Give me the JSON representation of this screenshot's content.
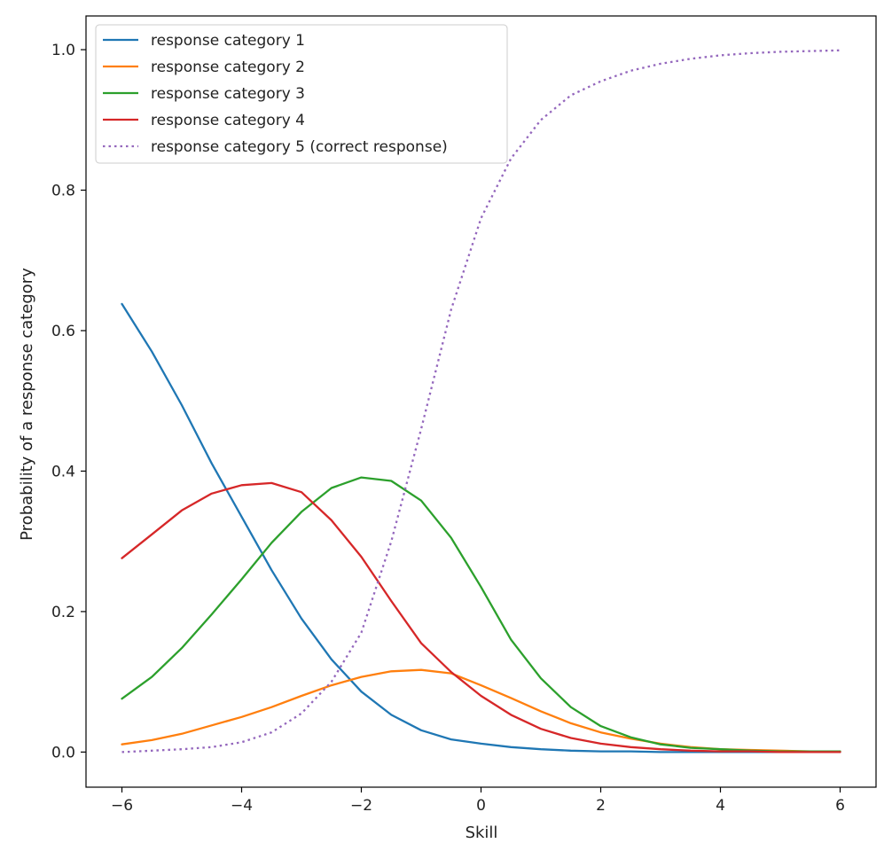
{
  "chart_data": {
    "type": "line",
    "title": "",
    "xlabel": "Skill",
    "ylabel": "Probability of a response category",
    "xlim": [
      -6.6,
      6.6
    ],
    "ylim": [
      -0.05,
      1.048
    ],
    "xticks": [
      -6,
      -4,
      -2,
      0,
      2,
      4,
      6
    ],
    "xtick_labels": [
      "−6",
      "−4",
      "−2",
      "0",
      "2",
      "4",
      "6"
    ],
    "yticks": [
      0.0,
      0.2,
      0.4,
      0.6,
      0.8,
      1.0
    ],
    "ytick_labels": [
      "0.0",
      "0.2",
      "0.4",
      "0.6",
      "0.8",
      "1.0"
    ],
    "grid": false,
    "legend_position": "upper-left",
    "x": [
      -6,
      -5.5,
      -5,
      -4.5,
      -4,
      -3.5,
      -3,
      -2.5,
      -2,
      -1.5,
      -1,
      -0.5,
      0,
      0.5,
      1,
      1.5,
      2,
      2.5,
      3,
      3.5,
      4,
      4.5,
      5,
      5.5,
      6
    ],
    "series": [
      {
        "name": "response category 1",
        "color": "#1f77b4",
        "style": "solid",
        "values": [
          0.638,
          0.57,
          0.494,
          0.411,
          0.335,
          0.259,
          0.19,
          0.132,
          0.086,
          0.053,
          0.031,
          0.018,
          0.012,
          0.007,
          0.004,
          0.002,
          0.001,
          0.001,
          0.0,
          0.0,
          0.0,
          0.0,
          0.0,
          0.0,
          0.0
        ]
      },
      {
        "name": "response category 2",
        "color": "#ff7f0e",
        "style": "solid",
        "values": [
          0.011,
          0.017,
          0.026,
          0.038,
          0.05,
          0.064,
          0.08,
          0.095,
          0.107,
          0.115,
          0.117,
          0.112,
          0.095,
          0.077,
          0.058,
          0.041,
          0.028,
          0.019,
          0.012,
          0.007,
          0.004,
          0.003,
          0.002,
          0.001,
          0.001
        ]
      },
      {
        "name": "response category 3",
        "color": "#2ca02c",
        "style": "solid",
        "values": [
          0.076,
          0.107,
          0.148,
          0.196,
          0.246,
          0.298,
          0.342,
          0.376,
          0.391,
          0.386,
          0.358,
          0.305,
          0.235,
          0.16,
          0.105,
          0.064,
          0.037,
          0.021,
          0.011,
          0.006,
          0.004,
          0.002,
          0.001,
          0.001,
          0.001
        ]
      },
      {
        "name": "response category 4",
        "color": "#d62728",
        "style": "solid",
        "values": [
          0.276,
          0.31,
          0.344,
          0.368,
          0.38,
          0.383,
          0.37,
          0.33,
          0.278,
          0.215,
          0.155,
          0.114,
          0.08,
          0.053,
          0.033,
          0.02,
          0.012,
          0.007,
          0.004,
          0.002,
          0.001,
          0.001,
          0.0,
          0.0,
          0.0
        ]
      },
      {
        "name": "response category 5 (correct response)",
        "color": "#9467bd",
        "style": "dotted",
        "values": [
          0.0,
          0.002,
          0.004,
          0.007,
          0.014,
          0.028,
          0.055,
          0.1,
          0.17,
          0.3,
          0.46,
          0.63,
          0.76,
          0.845,
          0.9,
          0.935,
          0.955,
          0.97,
          0.98,
          0.987,
          0.992,
          0.995,
          0.997,
          0.998,
          0.999
        ]
      }
    ]
  }
}
